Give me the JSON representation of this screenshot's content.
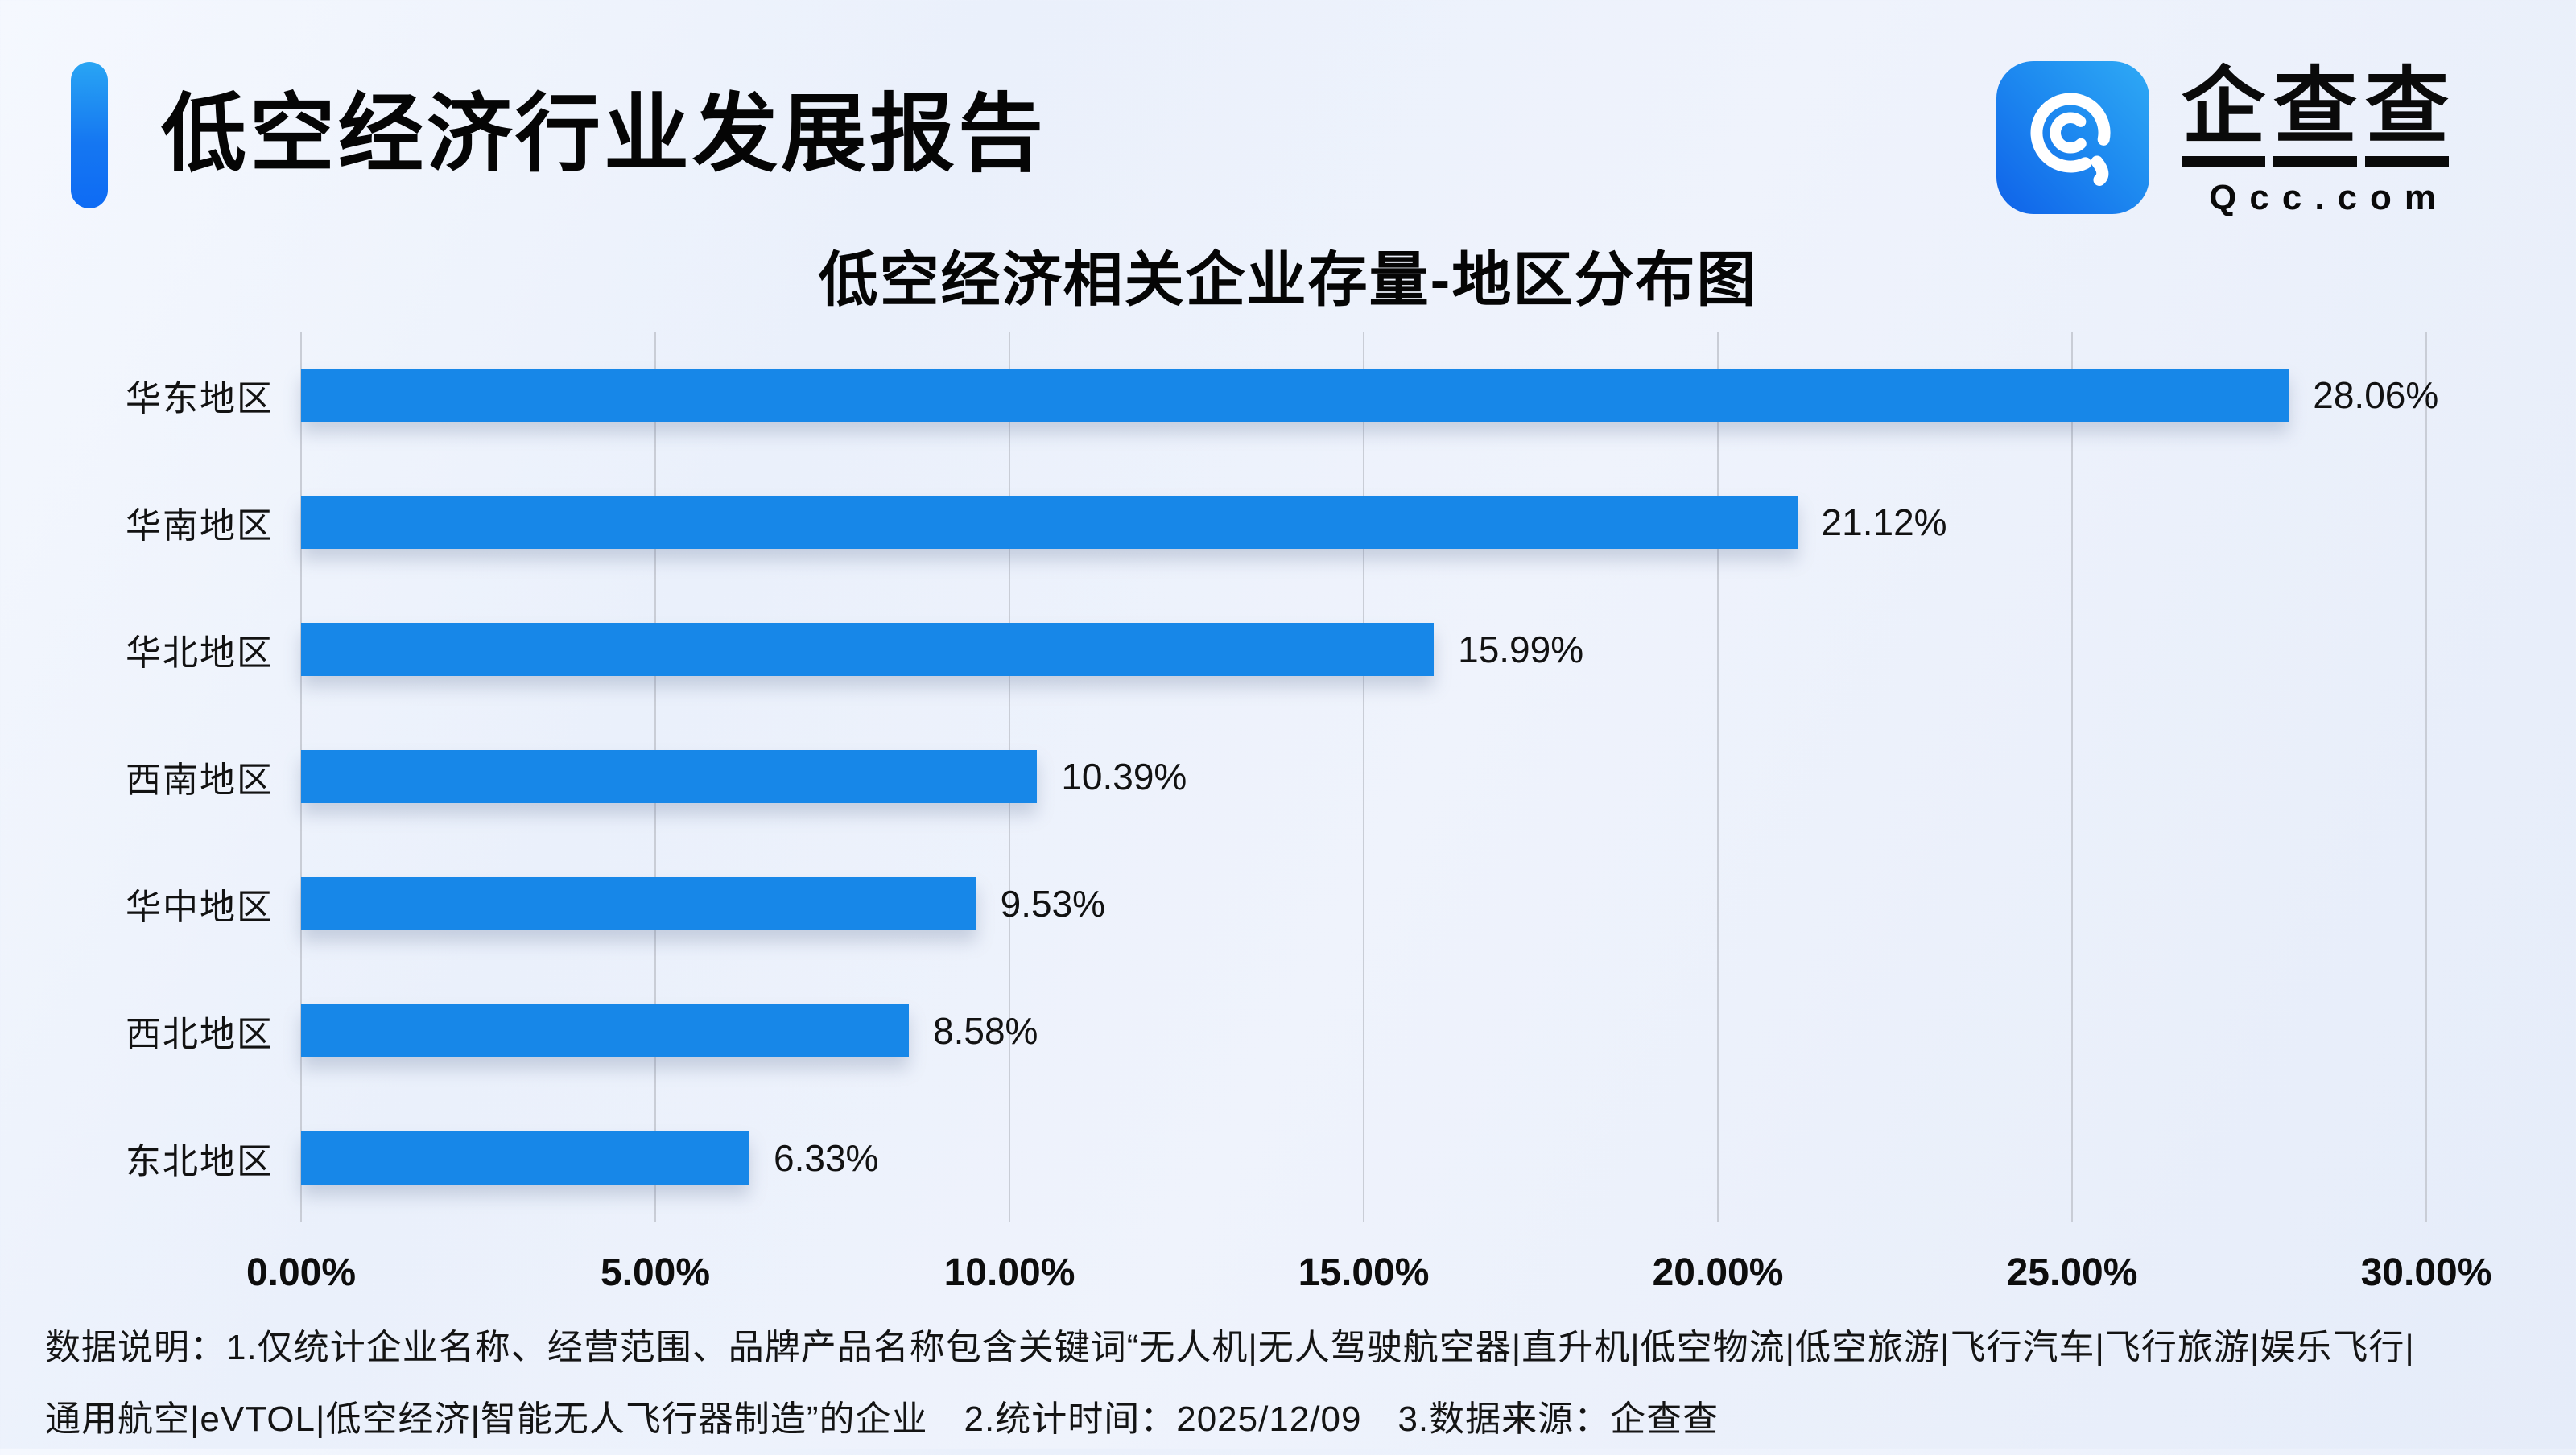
{
  "header": {
    "title": "低空经济行业发展报告",
    "accent_color": "#1577F2"
  },
  "logo": {
    "name": "企查查",
    "domain": "Qcc.com",
    "icon_gradient_start": "#0F62E9",
    "icon_gradient_end": "#2FAAF5"
  },
  "chart_data": {
    "type": "bar",
    "orientation": "horizontal",
    "title": "低空经济相关企业存量-地区分布图",
    "categories": [
      "华东地区",
      "华南地区",
      "华北地区",
      "西南地区",
      "华中地区",
      "西北地区",
      "东北地区"
    ],
    "values": [
      28.06,
      21.12,
      15.99,
      10.39,
      9.53,
      8.58,
      6.33
    ],
    "value_labels": [
      "28.06%",
      "21.12%",
      "15.99%",
      "10.39%",
      "9.53%",
      "8.58%",
      "6.33%"
    ],
    "x_ticks": [
      "0.00%",
      "5.00%",
      "10.00%",
      "15.00%",
      "20.00%",
      "25.00%",
      "30.00%"
    ],
    "xlim": [
      0,
      30
    ],
    "grid": true,
    "legend": false,
    "bar_color": "#1787E8",
    "gridline_color": "#c9cdd6"
  },
  "footer": {
    "line1": "数据说明：1.仅统计企业名称、经营范围、品牌产品名称包含关键词“无人机|无人驾驶航空器|直升机|低空物流|低空旅游|飞行汽车|飞行旅游|娱乐飞行|",
    "line2": "通用航空|eVTOL|低空经济|智能无人飞行器制造”的企业　2.统计时间：2025/12/09　3.数据来源：企查查"
  }
}
